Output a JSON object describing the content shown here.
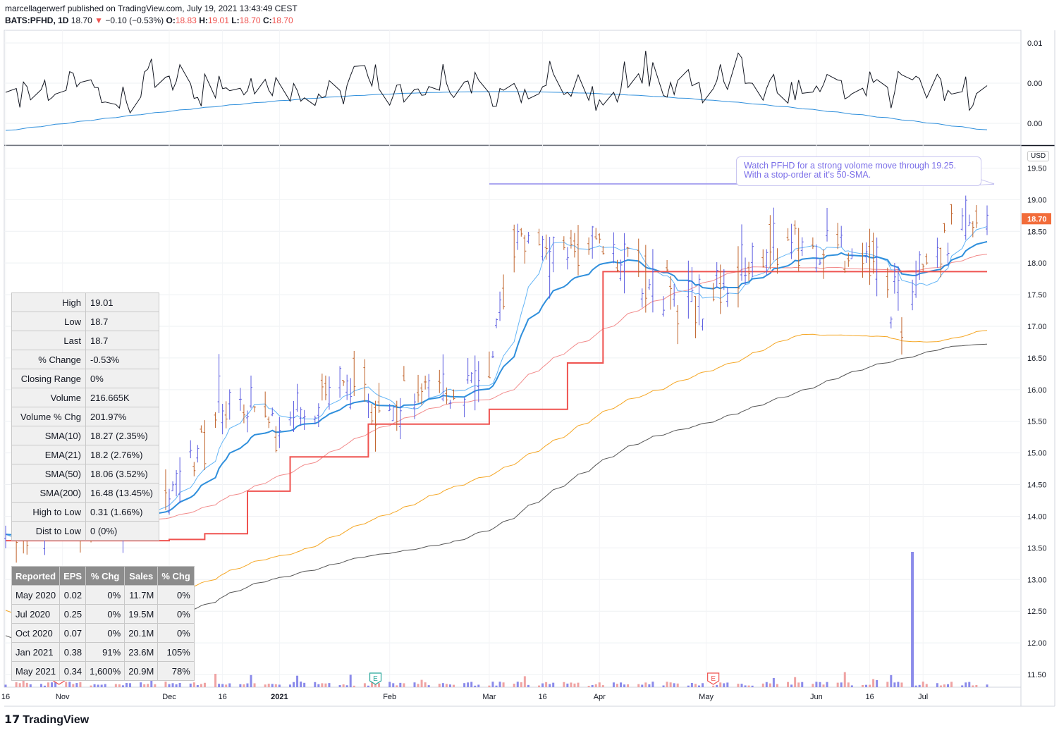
{
  "header": {
    "publisher": "marcellagerwerf published on TradingView.com, July 19, 2021 13:43:49 CEST",
    "symbol": "BATS:PFHD, 1D",
    "last": "18.70",
    "change_arrow": "▼",
    "change": "−0.10 (−0.53%)",
    "o_label": "O:",
    "o": "18.83",
    "h_label": "H:",
    "h": "19.01",
    "l_label": "L:",
    "l": "18.70",
    "c_label": "C:",
    "c": "18.70"
  },
  "colors": {
    "up_bar": "#5b5ce0",
    "down_bar": "#c0632b",
    "sma10": "#64b5f6",
    "ema21": "#2f8fdc",
    "sma50": "#f28b8b",
    "sma200": "#555555",
    "sma150": "#f5a623",
    "stop_line": "#ef5350",
    "annotation": "#7b6fe8",
    "current_price_badge": "#f26c3a"
  },
  "annotation": {
    "line1": "Watch PFHD for a strong volome move through 19.25.",
    "line2": "With a stop-order at it's 50-SMA.",
    "level": 19.25
  },
  "currency_label": "USD",
  "current_price_label": "18.70",
  "stats_table": [
    {
      "k": "High",
      "v": "19.01"
    },
    {
      "k": "Low",
      "v": "18.7"
    },
    {
      "k": "Last",
      "v": "18.7"
    },
    {
      "k": "% Change",
      "v": "-0.53%"
    },
    {
      "k": "Closing Range",
      "v": "0%"
    },
    {
      "k": "Volume",
      "v": "216.665K"
    },
    {
      "k": "Volume % Chg",
      "v": "201.97%"
    },
    {
      "k": "SMA(10)",
      "v": "18.27 (2.35%)"
    },
    {
      "k": "EMA(21)",
      "v": "18.2 (2.76%)"
    },
    {
      "k": "SMA(50)",
      "v": "18.06 (3.52%)"
    },
    {
      "k": "SMA(200)",
      "v": "16.48 (13.45%)"
    },
    {
      "k": "High to Low",
      "v": "0.31 (1.66%)"
    },
    {
      "k": "Dist to Low",
      "v": "0 (0%)"
    }
  ],
  "earnings_table": {
    "headers": [
      "Reported",
      "EPS",
      "% Chg",
      "Sales",
      "% Chg"
    ],
    "rows": [
      [
        "May 2020",
        "0.02",
        "0%",
        "11.7M",
        "0%"
      ],
      [
        "Jul 2020",
        "0.25",
        "0%",
        "19.5M",
        "0%"
      ],
      [
        "Oct 2020",
        "0.07",
        "0%",
        "20.1M",
        "0%"
      ],
      [
        "Jan 2021",
        "0.38",
        "91%",
        "23.6M",
        "105%"
      ],
      [
        "May 2021",
        "0.34",
        "1,600%",
        "20.9M",
        "78%"
      ]
    ]
  },
  "logo_text": "TradingView",
  "chart_data": {
    "type": "line",
    "price_axis": {
      "ticks": [
        11.5,
        12.0,
        12.5,
        13.0,
        13.5,
        14.0,
        14.5,
        15.0,
        15.5,
        16.0,
        16.5,
        17.0,
        17.5,
        18.0,
        18.5,
        19.0,
        19.5
      ],
      "tick_labels": [
        "11.50",
        "12.00",
        "12.50",
        "13.00",
        "13.50",
        "14.00",
        "14.50",
        "15.00",
        "15.50",
        "16.00",
        "16.50",
        "17.00",
        "17.50",
        "18.00",
        "18.50",
        "19.00",
        "19.50"
      ],
      "ylim": [
        11.3,
        19.85
      ]
    },
    "indicator_axis": {
      "tick_labels": [
        "0.01",
        "0.00",
        "0.00",
        "0.00"
      ]
    },
    "x_axis": {
      "tick_labels": [
        "16",
        "Nov",
        "Dec",
        "16",
        "2021",
        "Feb",
        "Mar",
        "16",
        "Apr",
        "May",
        "Jun",
        "16",
        "Jul"
      ]
    },
    "earnings_markers": [
      "E",
      "E",
      "E"
    ],
    "price_series": [
      {
        "date": "2020-10-16",
        "value": 13.85
      },
      {
        "date": "2020-11-01",
        "value": 13.9
      },
      {
        "date": "2020-11-16",
        "value": 14.0
      },
      {
        "date": "2020-12-01",
        "value": 14.3
      },
      {
        "date": "2020-12-16",
        "value": 15.8
      },
      {
        "date": "2021-01-01",
        "value": 15.5
      },
      {
        "date": "2021-01-16",
        "value": 16.1
      },
      {
        "date": "2021-02-01",
        "value": 15.8
      },
      {
        "date": "2021-02-16",
        "value": 16.0
      },
      {
        "date": "2021-03-01",
        "value": 16.1
      },
      {
        "date": "2021-03-08",
        "value": 18.6
      },
      {
        "date": "2021-03-16",
        "value": 18.1
      },
      {
        "date": "2021-04-01",
        "value": 18.3
      },
      {
        "date": "2021-04-16",
        "value": 17.7
      },
      {
        "date": "2021-05-01",
        "value": 17.3
      },
      {
        "date": "2021-05-16",
        "value": 18.2
      },
      {
        "date": "2021-06-01",
        "value": 18.3
      },
      {
        "date": "2021-06-16",
        "value": 18.1
      },
      {
        "date": "2021-06-25",
        "value": 17.2
      },
      {
        "date": "2021-07-01",
        "value": 18.2
      },
      {
        "date": "2021-07-19",
        "value": 18.7
      }
    ],
    "series": [
      {
        "name": "SMA(10)",
        "last": 18.27
      },
      {
        "name": "EMA(21)",
        "last": 18.2
      },
      {
        "name": "SMA(50)",
        "last": 18.06
      },
      {
        "name": "SMA(200)",
        "last": 16.48
      }
    ]
  }
}
